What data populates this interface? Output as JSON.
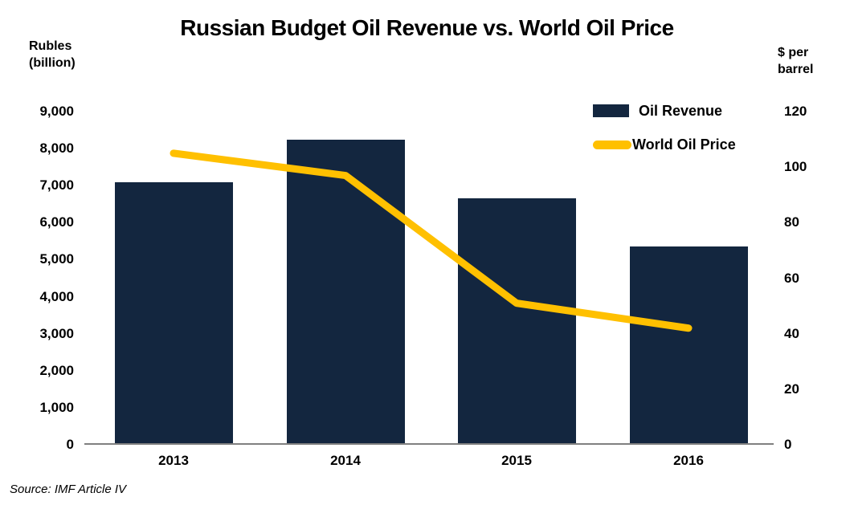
{
  "title": "Russian Budget Oil Revenue vs. World Oil Price",
  "source": "Source: IMF Article IV",
  "left_axis": {
    "unit_label": "Rubles\n(billion)",
    "tick_labels": [
      "0",
      "1,000",
      "2,000",
      "3,000",
      "4,000",
      "5,000",
      "6,000",
      "7,000",
      "8,000",
      "9,000"
    ],
    "tick_values": [
      0,
      1000,
      2000,
      3000,
      4000,
      5000,
      6000,
      7000,
      8000,
      9000
    ],
    "max": 9000
  },
  "right_axis": {
    "unit_label": "$ per\nbarrel",
    "tick_labels": [
      "0",
      "20",
      "40",
      "60",
      "80",
      "100",
      "120"
    ],
    "tick_values": [
      0,
      20,
      40,
      60,
      80,
      100,
      120
    ],
    "max": 120
  },
  "legend": [
    {
      "label": "Oil Revenue",
      "type": "bar",
      "color": "#13263F"
    },
    {
      "label": "World Oil Price",
      "type": "line",
      "color": "#FFC000"
    }
  ],
  "colors": {
    "bar": "#13263F",
    "line": "#FFC000",
    "axis": "#808080",
    "text": "#000000"
  },
  "chart_data": {
    "type": "bar",
    "subtype": "bar-and-line-dual-axis",
    "title": "Russian Budget Oil Revenue vs. World Oil Price",
    "categories": [
      "2013",
      "2014",
      "2015",
      "2016"
    ],
    "series": [
      {
        "name": "Oil Revenue",
        "type": "bar",
        "axis": "left",
        "unit": "Rubles (billion)",
        "color": "#13263F",
        "values": [
          7100,
          8250,
          6650,
          5350
        ]
      },
      {
        "name": "World Oil Price",
        "type": "line",
        "axis": "right",
        "unit": "$ per barrel",
        "color": "#FFC000",
        "values": [
          105,
          97,
          51,
          42
        ]
      }
    ],
    "xlabel": "",
    "left_ylabel": "Rubles (billion)",
    "right_ylabel": "$ per barrel",
    "left_ylim": [
      0,
      9000
    ],
    "right_ylim": [
      0,
      120
    ],
    "grid": false,
    "legend_position": "upper right",
    "annotations": [
      "Source: IMF Article IV"
    ]
  }
}
